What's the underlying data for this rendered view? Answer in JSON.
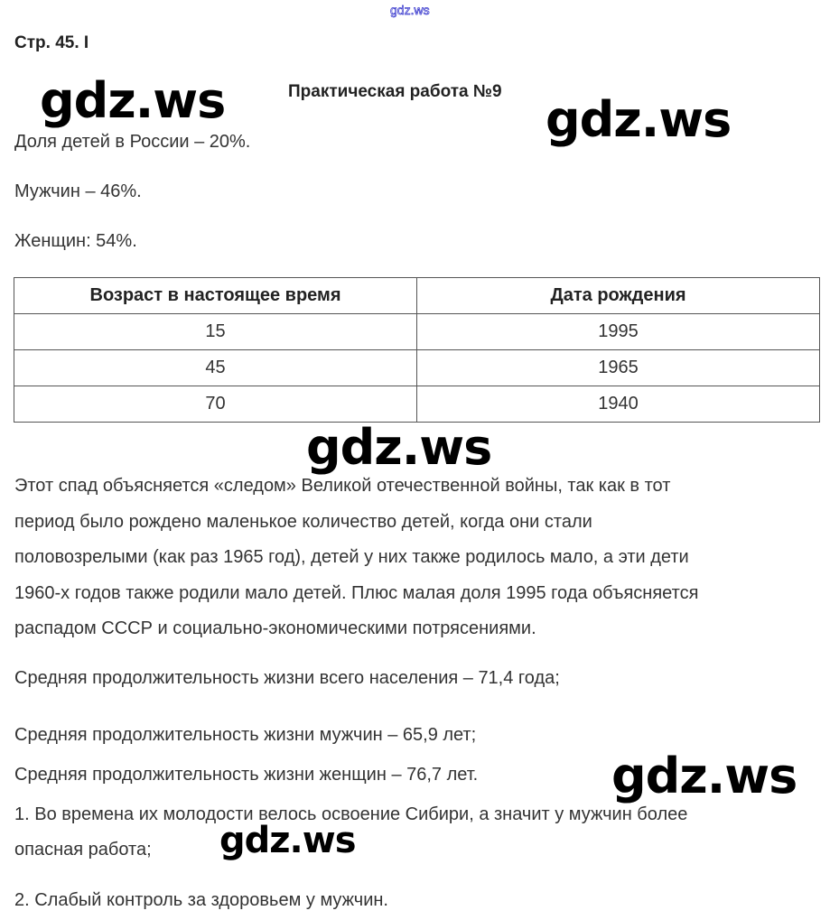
{
  "header_link": "gdz.ws",
  "page_label": "Стр. 45. I",
  "title": "Практическая работа №9",
  "stats": [
    "Доля детей в России – 20%.",
    "Мужчин – 46%.",
    "Женщин: 54%."
  ],
  "table": {
    "headers": [
      "Возраст в настоящее время",
      "Дата рождения"
    ],
    "rows": [
      [
        "15",
        "1995"
      ],
      [
        "45",
        "1965"
      ],
      [
        "70",
        "1940"
      ]
    ]
  },
  "paragraph": [
    "Этот спад объясняется «следом» Великой отечественной войны, так как в тот",
    "период было рождено маленькое количество детей, когда они стали",
    "половозрелыми (как раз 1965 год), детей у них также родилось мало, а эти дети",
    "1960-х годов также родили мало детей. Плюс малая доля 1995 года объясняется",
    "распадом СССР и социально-экономическими потрясениями."
  ],
  "life": [
    "Средняя продолжительность жизни всего населения – 71,4 года;",
    "Средняя продолжительность жизни мужчин – 65,9 лет;",
    "Средняя продолжительность жизни женщин – 76,7 лет."
  ],
  "reasons": [
    "1. Во времена их молодости велось освоение Сибири, а значит у мужчин более",
    "опасная работа;",
    "2. Слабый контроль за здоровьем у мужчин."
  ],
  "watermark": "gdz.ws"
}
